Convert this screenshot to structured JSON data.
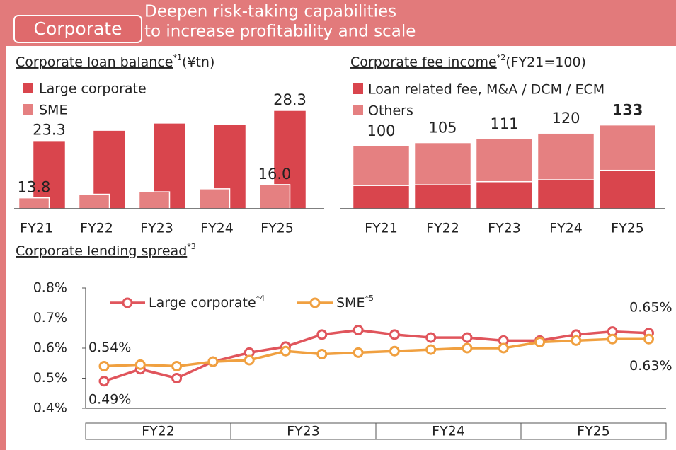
{
  "header": {
    "tag": "Corporate",
    "title_lines": [
      "Deepen risk-taking capabilities",
      "to increase profitability and scale"
    ]
  },
  "chart_data": [
    {
      "type": "bar",
      "title": "Corporate loan balance",
      "title_note": "*1",
      "unit": "(¥tn)",
      "categories": [
        "FY21",
        "FY22",
        "FY23",
        "FY24",
        "FY25"
      ],
      "series": [
        {
          "name": "Large corporate",
          "color": "#d9454d",
          "values": [
            23.3,
            25.0,
            26.2,
            26.0,
            28.3
          ],
          "value_labels": [
            "23.3",
            null,
            null,
            null,
            "28.3"
          ]
        },
        {
          "name": "SME",
          "color": "#e58081",
          "values": [
            13.8,
            14.4,
            14.8,
            15.3,
            16.0
          ],
          "value_labels": [
            "13.8",
            null,
            null,
            null,
            "16.0"
          ]
        }
      ],
      "ylim": [
        12,
        29
      ]
    },
    {
      "type": "stacked_bar",
      "title": "Corporate fee income",
      "title_note": "*2",
      "unit": "(FY21=100)",
      "categories": [
        "FY21",
        "FY22",
        "FY23",
        "FY24",
        "FY25"
      ],
      "series": [
        {
          "name": "Loan related fee, M&A / DCM / ECM",
          "color": "#d9454d",
          "values": [
            37,
            38,
            43,
            46,
            61
          ]
        },
        {
          "name": "Others",
          "color": "#e58081",
          "values": [
            63,
            67,
            68,
            74,
            72
          ]
        }
      ],
      "totals": [
        100,
        105,
        111,
        120,
        133
      ],
      "ylim": [
        0,
        140
      ]
    },
    {
      "type": "line",
      "title": "Corporate lending spread",
      "title_note": "*3",
      "categories": [
        null,
        null,
        null,
        null,
        null,
        null,
        null,
        null,
        null,
        null,
        null,
        null,
        null,
        null,
        null,
        null
      ],
      "x_groups": [
        "FY22",
        "FY23",
        "FY24",
        "FY25"
      ],
      "series": [
        {
          "name": "Large corporate",
          "note": "*4",
          "color": "#e0555c",
          "values": [
            0.49,
            0.53,
            0.5,
            0.555,
            0.585,
            0.605,
            0.645,
            0.66,
            0.645,
            0.635,
            0.635,
            0.625,
            0.625,
            0.645,
            0.655,
            0.65
          ],
          "value_labels": [
            "0.49%",
            null,
            null,
            null,
            null,
            null,
            null,
            null,
            null,
            null,
            null,
            null,
            null,
            null,
            null,
            "0.65%"
          ]
        },
        {
          "name": "SME",
          "note": "*5",
          "color": "#f0a040",
          "values": [
            0.54,
            0.545,
            0.54,
            0.555,
            0.56,
            0.59,
            0.58,
            0.585,
            0.59,
            0.595,
            0.6,
            0.6,
            0.62,
            0.625,
            0.63,
            0.63
          ],
          "value_labels": [
            "0.54%",
            null,
            null,
            null,
            null,
            null,
            null,
            null,
            null,
            null,
            null,
            null,
            null,
            null,
            null,
            "0.63%"
          ]
        }
      ],
      "ylim": [
        0.4,
        0.8
      ],
      "yticks": [
        {
          "value": 0.4,
          "label": "0.4%"
        },
        {
          "value": 0.5,
          "label": "0.5%"
        },
        {
          "value": 0.6,
          "label": "0.6%"
        },
        {
          "value": 0.7,
          "label": "0.7%"
        },
        {
          "value": 0.8,
          "label": "0.8%"
        }
      ]
    }
  ]
}
